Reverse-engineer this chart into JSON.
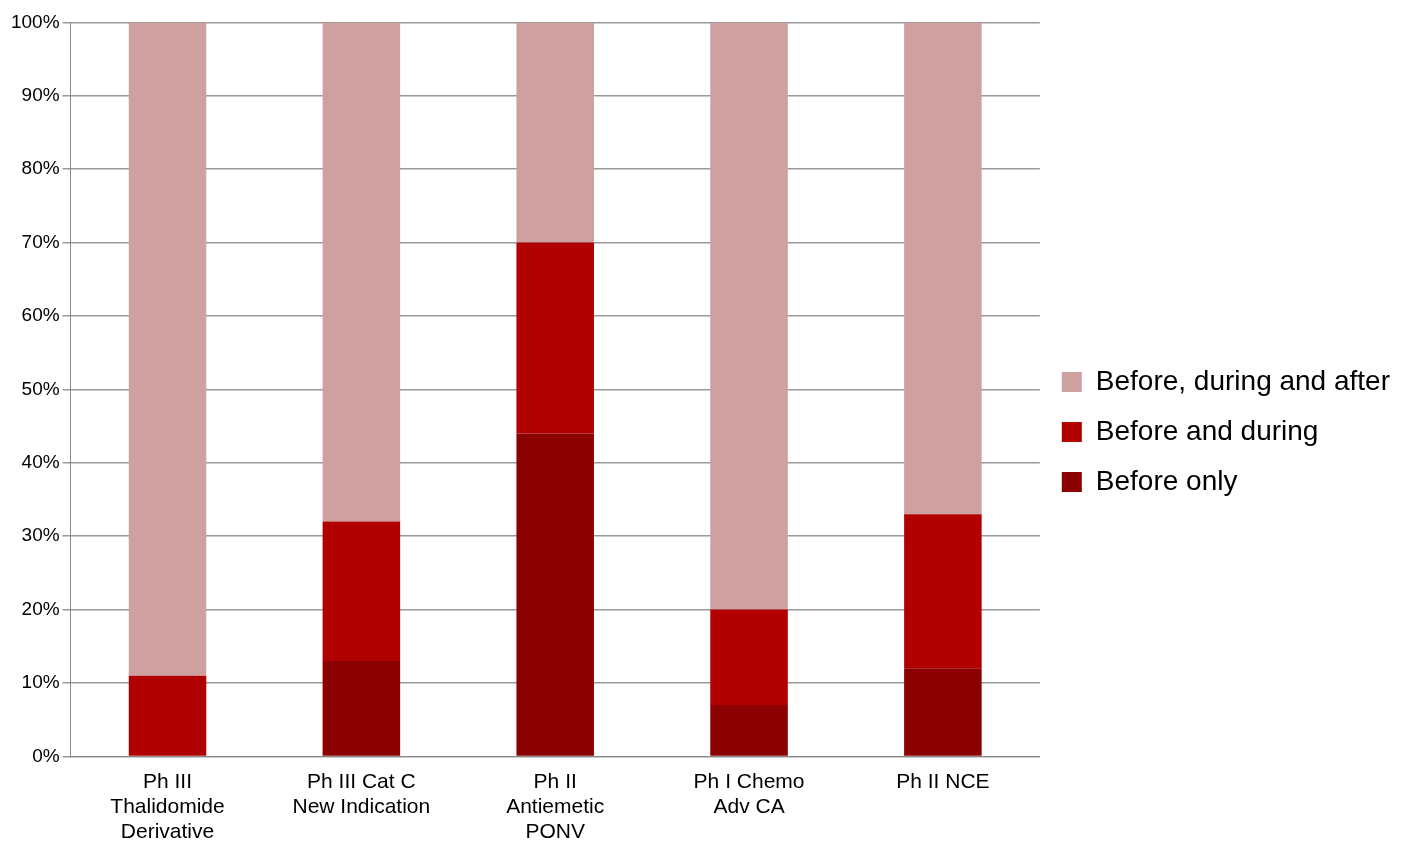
{
  "chart_data": {
    "type": "bar",
    "stacked": true,
    "categories": [
      "Ph III\nThalidomide\nDerivative",
      "Ph III Cat C\nNew Indication",
      "Ph II\nAntiemetic\nPONV",
      "Ph I Chemo\nAdv CA",
      "Ph II NCE"
    ],
    "series": [
      {
        "name": "Before only",
        "color": "#8b0000",
        "values": [
          0,
          13,
          44,
          7,
          12
        ]
      },
      {
        "name": "Before and during",
        "color": "#b00000",
        "values": [
          11,
          19,
          26,
          13,
          21
        ]
      },
      {
        "name": "Before, during and after",
        "color": "#cea0a0",
        "values": [
          89,
          68,
          30,
          80,
          67
        ]
      }
    ],
    "ylim": [
      0,
      100
    ],
    "yticks": [
      {
        "value": 0,
        "label": "0%"
      },
      {
        "value": 10,
        "label": "10%"
      },
      {
        "value": 20,
        "label": "20%"
      },
      {
        "value": 30,
        "label": "30%"
      },
      {
        "value": 40,
        "label": "40%"
      },
      {
        "value": 50,
        "label": "50%"
      },
      {
        "value": 60,
        "label": "60%"
      },
      {
        "value": 70,
        "label": "70%"
      },
      {
        "value": 80,
        "label": "80%"
      },
      {
        "value": 90,
        "label": "90%"
      },
      {
        "value": 100,
        "label": "100%"
      }
    ],
    "grid": "y",
    "legend": "right"
  }
}
